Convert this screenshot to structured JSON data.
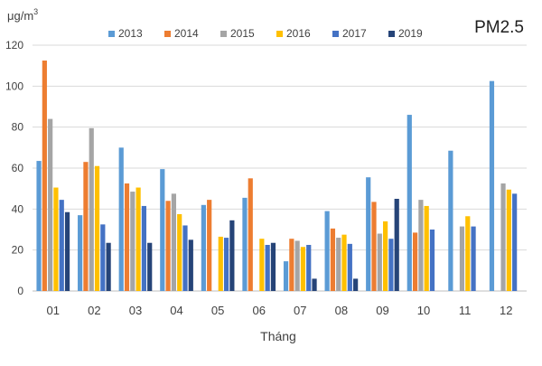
{
  "chart_data": {
    "type": "bar",
    "title": "PM2.5",
    "ylabel": "μg/m³",
    "ylabel_base": "μg/m",
    "ylabel_sup": "3",
    "xlabel": "Tháng",
    "ylim": [
      0,
      120
    ],
    "yticks": [
      "0",
      "20",
      "40",
      "60",
      "80",
      "100",
      "120"
    ],
    "grid": "horizontal",
    "legend_position": "top",
    "categories": [
      "01",
      "02",
      "03",
      "04",
      "05",
      "06",
      "07",
      "08",
      "09",
      "10",
      "11",
      "12"
    ],
    "series": [
      {
        "name": "2013",
        "color": "#5b9bd5",
        "values": [
          63.5,
          37,
          70,
          59.5,
          42,
          45.5,
          14.5,
          39,
          55.5,
          86,
          68.5,
          102.5
        ]
      },
      {
        "name": "2014",
        "color": "#ed7d31",
        "values": [
          112.5,
          63,
          52.5,
          44,
          44.5,
          55,
          25.5,
          30.5,
          43.5,
          28.5,
          null,
          null
        ]
      },
      {
        "name": "2015",
        "color": "#a5a5a5",
        "values": [
          84,
          79.5,
          48.5,
          47.5,
          null,
          null,
          24.5,
          26,
          28,
          44.5,
          31.5,
          52.5
        ]
      },
      {
        "name": "2016",
        "color": "#ffc000",
        "values": [
          50.5,
          61,
          50.5,
          37.5,
          26.5,
          25.5,
          21.5,
          27.5,
          34,
          41.5,
          36.5,
          49.5
        ]
      },
      {
        "name": "2017",
        "color": "#4472c4",
        "values": [
          44.5,
          32.5,
          41.5,
          32,
          26,
          22.5,
          22.5,
          23,
          25.5,
          30,
          31.5,
          47.5
        ]
      },
      {
        "name": "2019",
        "color": "#264478",
        "values": [
          38.5,
          23.5,
          23.5,
          25,
          34.5,
          23.5,
          6,
          6,
          45,
          null,
          null,
          null
        ]
      }
    ]
  }
}
